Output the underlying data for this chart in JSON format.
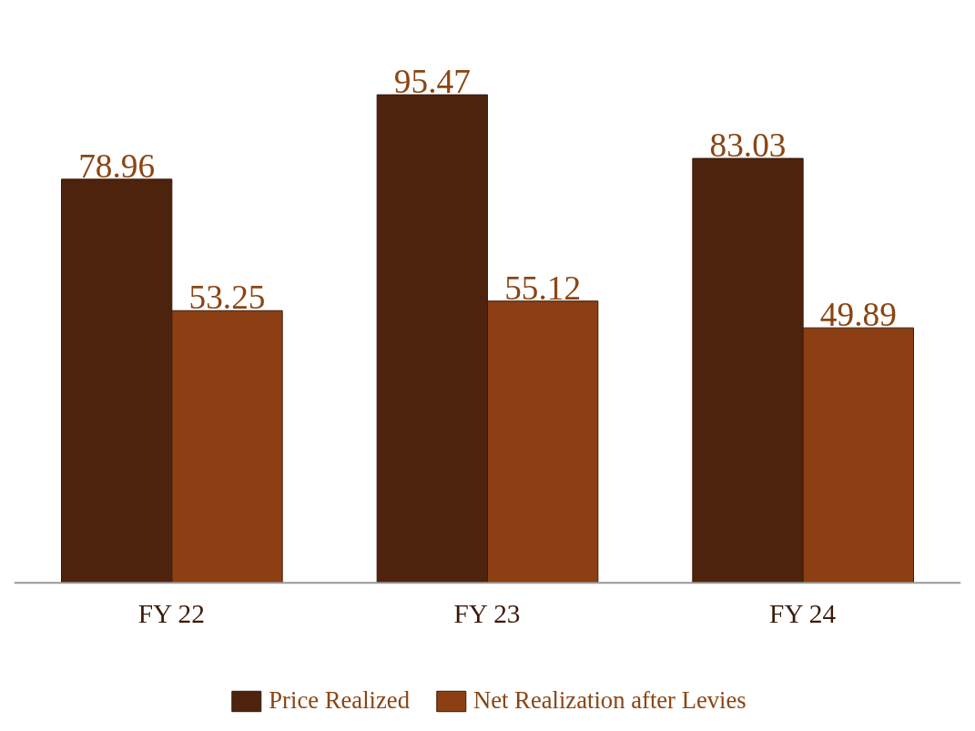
{
  "chart_data": {
    "type": "bar",
    "categories": [
      "FY 22",
      "FY 23",
      "FY 24"
    ],
    "series": [
      {
        "name": "Price Realized",
        "color": "#4e230d",
        "values": [
          78.96,
          95.47,
          83.03
        ]
      },
      {
        "name": "Net Realization after Levies",
        "color": "#8b3f13",
        "values": [
          53.25,
          55.12,
          49.89
        ]
      }
    ],
    "data_labels": true,
    "legend": "bottom",
    "grid": false,
    "tick_labels": "x"
  }
}
